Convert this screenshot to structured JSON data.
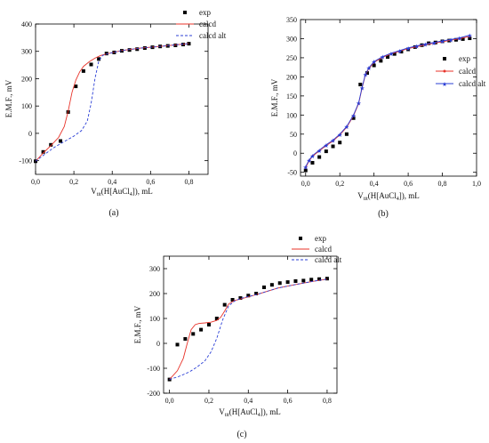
{
  "chart_data": [
    {
      "type": "line",
      "panel_label": "(a)",
      "ylabel": "E.M.F., mV",
      "xlabel_parts": {
        "v": "V",
        "sub": "tit",
        "mid": "(H[AuCl",
        "sub2": "4",
        "end": "]), mL"
      },
      "xlim": [
        0,
        0.9
      ],
      "ylim": [
        -150,
        400
      ],
      "x_ticks": [
        0.0,
        0.2,
        0.4,
        0.6,
        0.8
      ],
      "x_tick_labels": [
        "0,0",
        "0,2",
        "0,4",
        "0,6",
        "0,8"
      ],
      "y_ticks": [
        -100,
        0,
        100,
        200,
        300,
        400
      ],
      "y_tick_labels": [
        "-100",
        "0",
        "100",
        "200",
        "300",
        "400"
      ],
      "legend_position": "top-center",
      "legend": [
        "exp",
        "calcd",
        "calcd alt"
      ],
      "series": [
        {
          "name": "exp",
          "style": "markers",
          "color": "#000000",
          "x": [
            0.0,
            0.04,
            0.08,
            0.13,
            0.17,
            0.21,
            0.25,
            0.29,
            0.33,
            0.37,
            0.41,
            0.45,
            0.49,
            0.53,
            0.57,
            0.61,
            0.65,
            0.69,
            0.73,
            0.77,
            0.8
          ],
          "y": [
            -102,
            -68,
            -42,
            -28,
            78,
            172,
            228,
            252,
            272,
            292,
            296,
            302,
            305,
            308,
            312,
            315,
            318,
            320,
            322,
            325,
            328
          ]
        },
        {
          "name": "calcd",
          "style": "line",
          "color": "#e8332a",
          "x": [
            0.0,
            0.04,
            0.08,
            0.12,
            0.15,
            0.17,
            0.19,
            0.21,
            0.23,
            0.25,
            0.28,
            0.31,
            0.34,
            0.38,
            0.45,
            0.55,
            0.65,
            0.75,
            0.8
          ],
          "y": [
            -102,
            -72,
            -45,
            -15,
            25,
            80,
            150,
            195,
            225,
            245,
            262,
            275,
            285,
            292,
            303,
            312,
            318,
            325,
            328
          ]
        },
        {
          "name": "calcd alt",
          "style": "dashed",
          "color": "#2b3fd6",
          "x": [
            0.0,
            0.05,
            0.1,
            0.15,
            0.2,
            0.24,
            0.27,
            0.29,
            0.31,
            0.33,
            0.35,
            0.38,
            0.45,
            0.55,
            0.65,
            0.75,
            0.8
          ],
          "y": [
            -102,
            -75,
            -50,
            -30,
            -10,
            10,
            45,
            110,
            200,
            265,
            285,
            292,
            303,
            312,
            318,
            325,
            328
          ]
        }
      ]
    },
    {
      "type": "line",
      "panel_label": "(b)",
      "ylabel": "E.M.F., mV",
      "xlabel_parts": {
        "v": "V",
        "sub": "tit",
        "mid": "(H[AuCl",
        "sub2": "4",
        "end": "]), mL"
      },
      "xlim": [
        -0.03,
        1.0
      ],
      "ylim": [
        -60,
        350
      ],
      "x_ticks": [
        0.0,
        0.2,
        0.4,
        0.6,
        0.8,
        1.0
      ],
      "x_tick_labels": [
        "0,0",
        "0,2",
        "0,4",
        "0,6",
        "0,8",
        "1,0"
      ],
      "y_ticks": [
        -50,
        0,
        50,
        100,
        150,
        200,
        250,
        300,
        350
      ],
      "y_tick_labels": [
        "-50",
        "0",
        "50",
        "100",
        "150",
        "200",
        "250",
        "300",
        "350"
      ],
      "legend_position": "right",
      "legend": [
        "exp",
        "calcd",
        "calcd alt"
      ],
      "series": [
        {
          "name": "exp",
          "style": "markers",
          "color": "#000000",
          "x": [
            0.0,
            0.04,
            0.08,
            0.12,
            0.16,
            0.2,
            0.24,
            0.28,
            0.32,
            0.36,
            0.4,
            0.44,
            0.48,
            0.52,
            0.56,
            0.6,
            0.64,
            0.68,
            0.72,
            0.76,
            0.8,
            0.84,
            0.88,
            0.92,
            0.96
          ],
          "y": [
            -45,
            -25,
            -10,
            5,
            18,
            28,
            50,
            92,
            180,
            210,
            230,
            242,
            252,
            260,
            266,
            272,
            278,
            283,
            288,
            290,
            293,
            295,
            297,
            299,
            301
          ]
        },
        {
          "name": "calcd",
          "style": "line-dots",
          "color": "#e8332a",
          "x": [
            0.0,
            0.02,
            0.04,
            0.08,
            0.12,
            0.16,
            0.2,
            0.24,
            0.28,
            0.31,
            0.33,
            0.35,
            0.37,
            0.4,
            0.45,
            0.5,
            0.55,
            0.6,
            0.65,
            0.7,
            0.75,
            0.8,
            0.85,
            0.9,
            0.96
          ],
          "y": [
            -38,
            -20,
            -8,
            6,
            20,
            32,
            48,
            68,
            98,
            130,
            170,
            205,
            222,
            238,
            251,
            260,
            267,
            274,
            279,
            284,
            288,
            292,
            296,
            300,
            306
          ]
        },
        {
          "name": "calcd alt",
          "style": "line-stars",
          "color": "#2b3fd6",
          "x": [
            0.0,
            0.02,
            0.04,
            0.08,
            0.12,
            0.16,
            0.2,
            0.24,
            0.28,
            0.31,
            0.33,
            0.35,
            0.37,
            0.4,
            0.45,
            0.5,
            0.55,
            0.6,
            0.65,
            0.7,
            0.75,
            0.8,
            0.85,
            0.9,
            0.96
          ],
          "y": [
            -35,
            -18,
            -6,
            8,
            22,
            34,
            50,
            70,
            100,
            132,
            172,
            207,
            224,
            240,
            253,
            262,
            269,
            276,
            281,
            286,
            290,
            294,
            298,
            302,
            309
          ]
        }
      ]
    },
    {
      "type": "line",
      "panel_label": "(c)",
      "ylabel": "E.M.F., mV",
      "xlabel_parts": {
        "v": "V",
        "sub": "tit",
        "mid": "(H[AuCl",
        "sub2": "4",
        "end": "]), mL"
      },
      "xlim": [
        -0.03,
        0.85
      ],
      "ylim": [
        -200,
        350
      ],
      "x_ticks": [
        0.0,
        0.2,
        0.4,
        0.6,
        0.8
      ],
      "x_tick_labels": [
        "0,0",
        "0,2",
        "0,4",
        "0,6",
        "0,8"
      ],
      "y_ticks": [
        -200,
        -100,
        0,
        100,
        200,
        300
      ],
      "y_tick_labels": [
        "-200",
        "-100",
        "0",
        "100",
        "200",
        "300"
      ],
      "legend_position": "top-right",
      "legend": [
        "exp",
        "calcd",
        "calcd alt"
      ],
      "series": [
        {
          "name": "exp",
          "style": "markers",
          "color": "#000000",
          "x": [
            0.0,
            0.04,
            0.08,
            0.12,
            0.16,
            0.2,
            0.24,
            0.28,
            0.32,
            0.36,
            0.4,
            0.44,
            0.48,
            0.52,
            0.56,
            0.6,
            0.64,
            0.68,
            0.72,
            0.76,
            0.8
          ],
          "y": [
            -145,
            -5,
            18,
            38,
            55,
            75,
            100,
            155,
            175,
            182,
            192,
            200,
            225,
            235,
            242,
            246,
            250,
            252,
            256,
            258,
            260
          ]
        },
        {
          "name": "calcd",
          "style": "line",
          "color": "#e8332a",
          "x": [
            0.0,
            0.04,
            0.07,
            0.09,
            0.11,
            0.13,
            0.15,
            0.18,
            0.21,
            0.24,
            0.26,
            0.28,
            0.3,
            0.33,
            0.38,
            0.45,
            0.55,
            0.65,
            0.75,
            0.8
          ],
          "y": [
            -145,
            -110,
            -60,
            0,
            55,
            75,
            80,
            82,
            85,
            92,
            105,
            130,
            158,
            172,
            182,
            198,
            222,
            238,
            252,
            258
          ]
        },
        {
          "name": "calcd alt",
          "style": "dashed",
          "color": "#2b3fd6",
          "x": [
            0.0,
            0.05,
            0.1,
            0.14,
            0.18,
            0.21,
            0.24,
            0.27,
            0.3,
            0.33,
            0.36,
            0.4,
            0.45,
            0.55,
            0.65,
            0.75,
            0.8
          ],
          "y": [
            -145,
            -132,
            -115,
            -95,
            -70,
            -35,
            20,
            95,
            150,
            170,
            180,
            188,
            198,
            222,
            238,
            252,
            258
          ]
        }
      ]
    }
  ]
}
